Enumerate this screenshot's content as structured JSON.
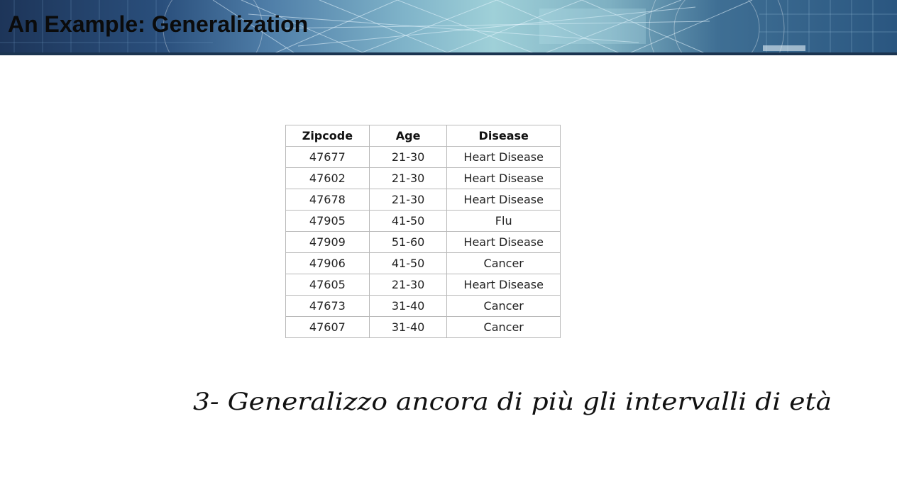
{
  "slide": {
    "title": "An Example: Generalization"
  },
  "table": {
    "headers": [
      "Zipcode",
      "Age",
      "Disease"
    ],
    "rows": [
      [
        "47677",
        "21-30",
        "Heart Disease"
      ],
      [
        "47602",
        "21-30",
        "Heart Disease"
      ],
      [
        "47678",
        "21-30",
        "Heart Disease"
      ],
      [
        "47905",
        "41-50",
        "Flu"
      ],
      [
        "47909",
        "51-60",
        "Heart Disease"
      ],
      [
        "47906",
        "41-50",
        "Cancer"
      ],
      [
        "47605",
        "21-30",
        "Heart Disease"
      ],
      [
        "47673",
        "31-40",
        "Cancer"
      ],
      [
        "47607",
        "31-40",
        "Cancer"
      ]
    ]
  },
  "handwritten_note": "3- Generalizzo ancora di più gli intervalli di età",
  "colors": {
    "banner_dark": "#1d3559",
    "banner_light": "#9fd0d8",
    "ink": "#111111",
    "table_border": "#b9b9b9"
  }
}
